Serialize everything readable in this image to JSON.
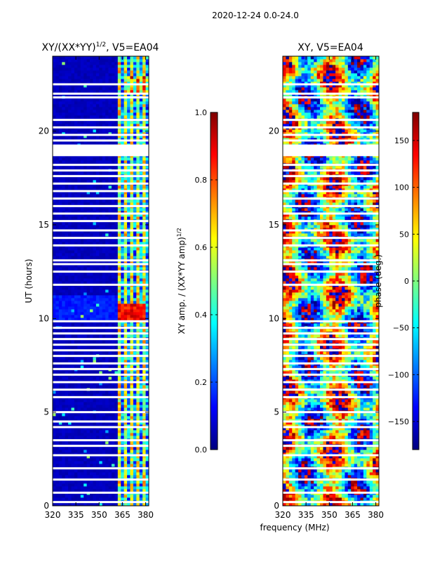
{
  "suptitle": "2020-12-24 0.0-24.0",
  "xlabel_common": "frequency (MHz)",
  "chart_data": [
    {
      "type": "heatmap",
      "title_prefix": "XY/(XX*YY)",
      "title_exp": "1/2",
      "title_suffix": ", V5=EA04",
      "ylabel": "UT (hours)",
      "xlim": [
        320,
        382
      ],
      "ylim": [
        0,
        24
      ],
      "x_ticks": [
        320,
        335,
        350,
        365,
        380
      ],
      "y_ticks": [
        0,
        5,
        10,
        15,
        20
      ],
      "colorbar": {
        "label": "XY amp. / (XX*YY amp)",
        "label_exp": "1/2",
        "range": [
          0.0,
          1.0
        ],
        "ticks": [
          "0.0",
          "0.2",
          "0.4",
          "0.6",
          "0.8",
          "1.0"
        ],
        "tick_values": [
          0.0,
          0.2,
          0.4,
          0.6,
          0.8,
          1.0
        ]
      },
      "blank_rows_hours": [
        0.2,
        0.7,
        1.4,
        2.0,
        2.7,
        3.2,
        3.5,
        4.2,
        4.5,
        5.0,
        5.8,
        6.2,
        6.6,
        7.0,
        7.3,
        7.6,
        8.0,
        8.3,
        8.6,
        8.9,
        9.2,
        9.5,
        9.85,
        11.8,
        12.5,
        12.9,
        13.1,
        13.9,
        14.3,
        14.7,
        15.2,
        15.6,
        16.0,
        16.4,
        16.8,
        17.2,
        17.6,
        17.9,
        18.2,
        18.85,
        19.1,
        19.5,
        19.8,
        20.2,
        20.6,
        21.8,
        22.0,
        22.5
      ]
    },
    {
      "type": "heatmap",
      "title": "XY, V5=EA04",
      "xlim": [
        320,
        382
      ],
      "ylim": [
        0,
        24
      ],
      "x_ticks": [
        320,
        335,
        350,
        365,
        380
      ],
      "y_ticks": [
        0,
        5,
        10,
        15,
        20
      ],
      "colorbar": {
        "label": "phase (deg.)",
        "range": [
          -180,
          180
        ],
        "ticks": [
          "−150",
          "−100",
          "−50",
          "0",
          "50",
          "100",
          "150"
        ],
        "tick_values": [
          -150,
          -100,
          -50,
          0,
          50,
          100,
          150
        ]
      },
      "blank_rows_hours": [
        0.2,
        0.7,
        1.4,
        2.0,
        2.7,
        3.2,
        3.5,
        4.2,
        4.5,
        5.0,
        5.8,
        6.2,
        6.6,
        7.0,
        7.3,
        7.6,
        8.0,
        8.3,
        8.6,
        8.9,
        9.2,
        9.5,
        9.85,
        11.8,
        12.5,
        12.9,
        13.1,
        13.9,
        14.3,
        14.7,
        15.2,
        15.6,
        16.0,
        16.4,
        16.8,
        17.2,
        17.6,
        17.9,
        18.2,
        18.85,
        19.1,
        19.5,
        19.8,
        20.2,
        20.6,
        21.8,
        22.0,
        22.5
      ]
    }
  ]
}
